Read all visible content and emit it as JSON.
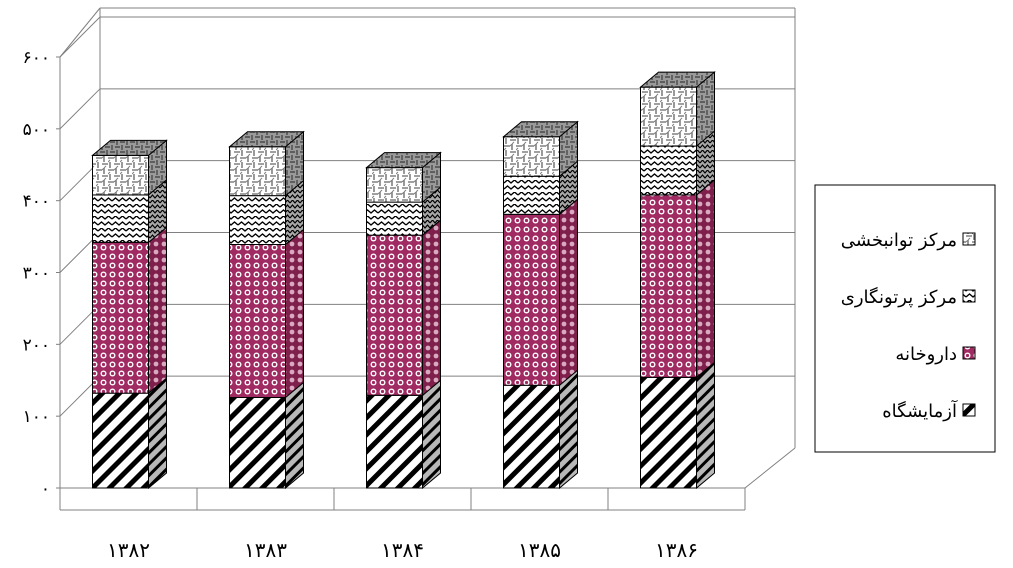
{
  "chart_data": {
    "type": "bar",
    "stacked": true,
    "three_d": true,
    "categories": [
      "۱۳۸۲",
      "۱۳۸۳",
      "۱۳۸۴",
      "۱۳۸۵",
      "۱۳۸۶"
    ],
    "series": [
      {
        "name": "آزمایشگاه",
        "values": [
          132,
          126,
          129,
          143,
          154
        ],
        "pattern": "diagonal-stripes",
        "color": "#000000"
      },
      {
        "name": "داروخانه",
        "values": [
          210,
          213,
          223,
          238,
          254
        ],
        "pattern": "dots",
        "color": "#b0306a"
      },
      {
        "name": "مرکز پرتونگاری",
        "values": [
          66,
          68,
          46,
          53,
          68
        ],
        "pattern": "zigzag",
        "color": "#000000"
      },
      {
        "name": "مرکز توانبخشی",
        "values": [
          55,
          68,
          48,
          55,
          82
        ],
        "pattern": "weave",
        "color": "#808080"
      }
    ],
    "yticks": [
      "۰",
      "۱۰۰",
      "۲۰۰",
      "۳۰۰",
      "۴۰۰",
      "۵۰۰",
      "۶۰۰"
    ],
    "ylim": [
      0,
      600
    ],
    "title": "",
    "xlabel": "",
    "ylabel": "",
    "grid": true,
    "legend_position": "right"
  }
}
